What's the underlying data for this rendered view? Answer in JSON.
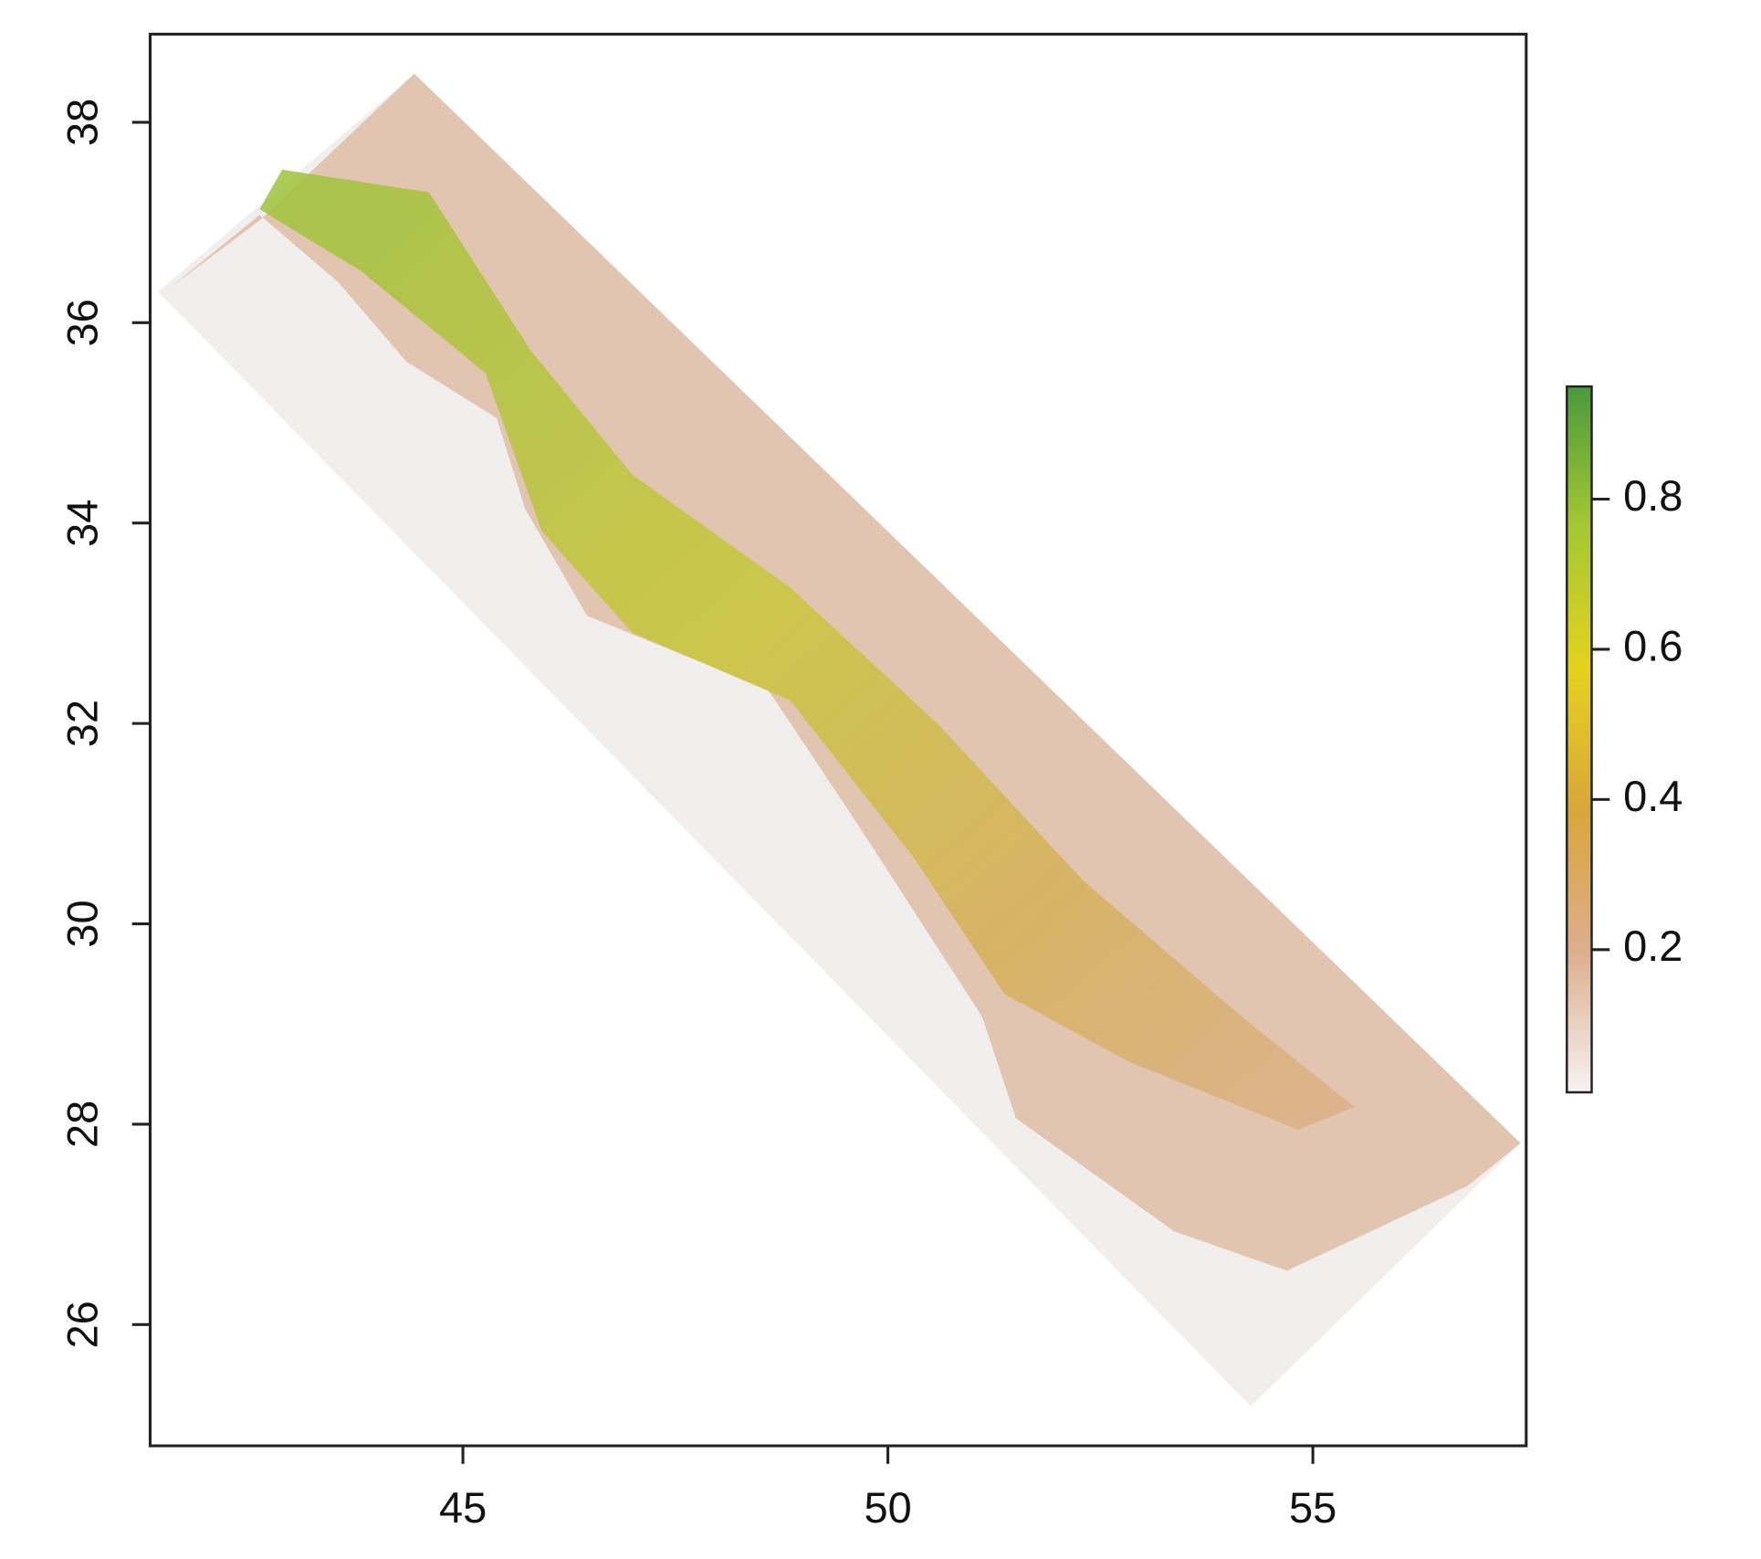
{
  "chart_data": {
    "type": "raster",
    "xlim": [
      41.32,
      57.51
    ],
    "xticks": [
      45,
      50,
      55
    ],
    "ylim": [
      24.79,
      38.88
    ],
    "yticks": [
      26,
      28,
      30,
      32,
      34,
      36,
      38
    ],
    "colorbar": {
      "lim": [
        0.01,
        0.95
      ],
      "ticks": [
        0.2,
        0.4,
        0.6,
        0.8
      ],
      "colors": [
        "#f7f2f2",
        "#dcae8c",
        "#d9a63a",
        "#e4d21e",
        "#a5c832",
        "#4a9a3d"
      ]
    }
  }
}
